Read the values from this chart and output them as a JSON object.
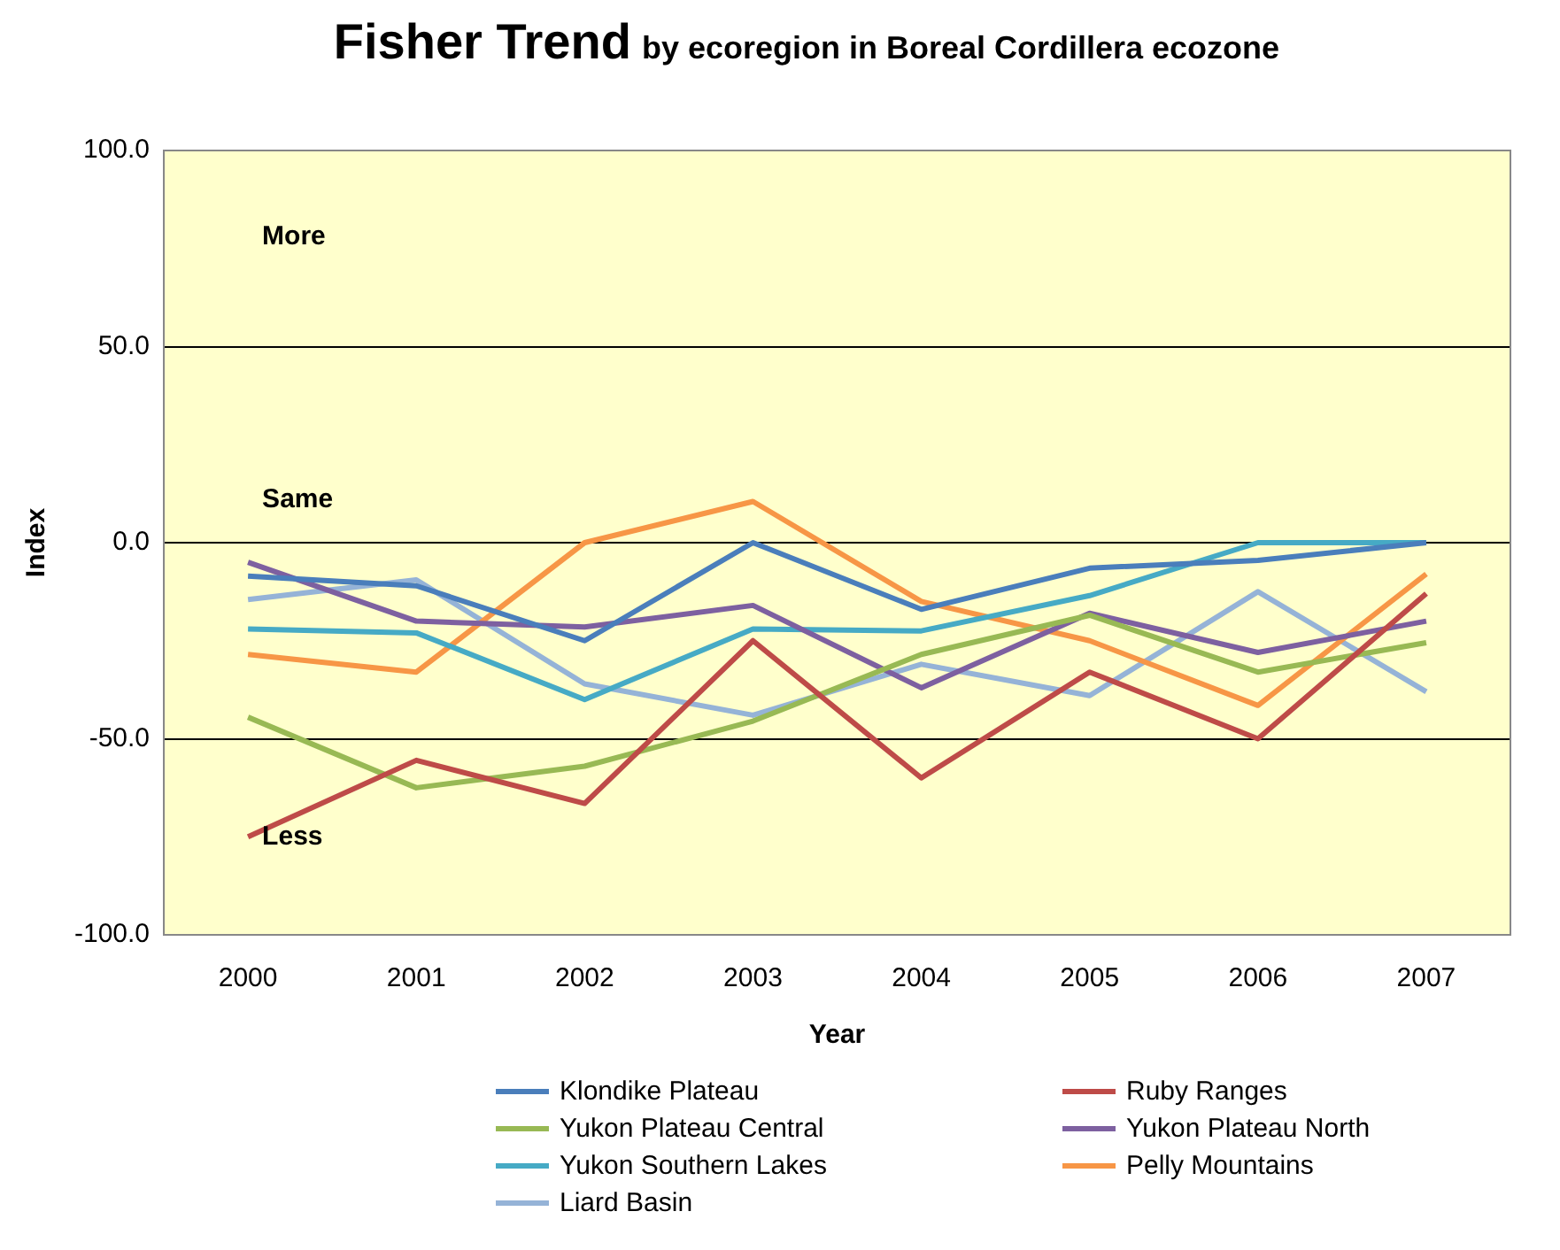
{
  "chart_data": {
    "type": "line",
    "title": "Fisher Trend",
    "subtitle": "by ecoregion in Boreal Cordillera ecozone",
    "xlabel": "Year",
    "ylabel": "Index",
    "categories": [
      "2000",
      "2001",
      "2002",
      "2003",
      "2004",
      "2005",
      "2006",
      "2007"
    ],
    "series": [
      {
        "name": "Klondike Plateau",
        "color": "#4a7ebb",
        "values": [
          -8.5,
          -11,
          -25,
          0,
          -17,
          -6.5,
          -4.5,
          0
        ]
      },
      {
        "name": "Ruby Ranges",
        "color": "#be4b48",
        "values": [
          -75,
          -55.5,
          -66.5,
          -25,
          -60,
          -33,
          -50,
          -13
        ]
      },
      {
        "name": "Yukon Plateau Central",
        "color": "#98b954",
        "values": [
          -44.5,
          -62.5,
          -57,
          -45.5,
          -28.5,
          -18.5,
          -33,
          -25.5
        ]
      },
      {
        "name": "Yukon Plateau North",
        "color": "#7d60a0",
        "values": [
          -5,
          -20,
          -21.5,
          -16,
          -37,
          -18,
          -28,
          -20
        ]
      },
      {
        "name": "Yukon Southern Lakes",
        "color": "#46aac5",
        "values": [
          -22,
          -23,
          -40,
          -22,
          -22.5,
          -13.5,
          0,
          0
        ]
      },
      {
        "name": "Pelly Mountains",
        "color": "#f79646",
        "values": [
          -28.5,
          -33,
          0,
          10.5,
          -15,
          -25,
          -41.5,
          -8
        ]
      },
      {
        "name": "Liard Basin",
        "color": "#95b3d7",
        "values": [
          -14.5,
          -9.5,
          -36,
          -44,
          -31,
          -39,
          -12.5,
          -38
        ]
      }
    ],
    "ylim": [
      -100,
      100
    ],
    "yticks": [
      {
        "value": -100,
        "label": "-100.0"
      },
      {
        "value": -50,
        "label": "-50.0"
      },
      {
        "value": 0,
        "label": "0.0"
      },
      {
        "value": 50,
        "label": "50.0"
      },
      {
        "value": 100,
        "label": "100.0"
      }
    ],
    "annotations": [
      "More",
      "Same",
      "Less"
    ],
    "grid": "y",
    "legend": "bottom",
    "marker": "none",
    "line_style": "solid"
  }
}
